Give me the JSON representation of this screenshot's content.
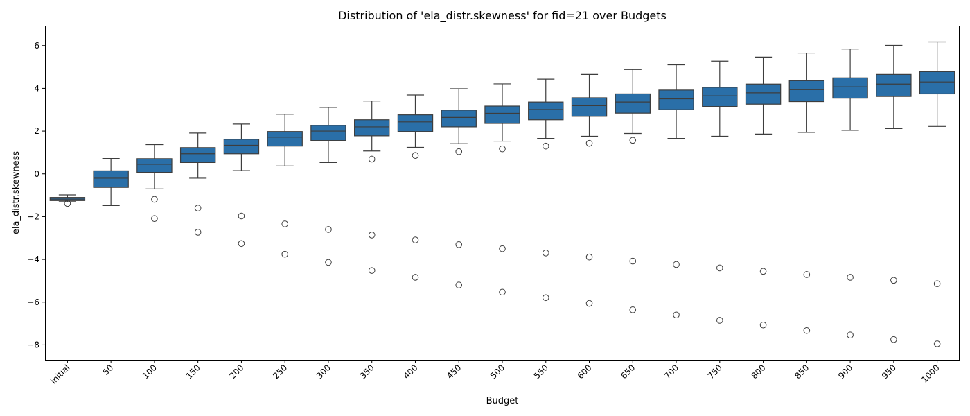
{
  "chart_data": {
    "type": "box",
    "title": "Distribution of 'ela_distr.skewness' for fid=21 over Budgets",
    "xlabel": "Budget",
    "ylabel": "ela_distr.skewness",
    "ylim": [
      -8.7,
      6.9
    ],
    "yticks": [
      -8,
      -6,
      -4,
      -2,
      0,
      2,
      4,
      6
    ],
    "grid": false,
    "legend": "none",
    "box_color": "#2a6fa8",
    "categories": [
      "initial",
      "50",
      "100",
      "150",
      "200",
      "250",
      "300",
      "350",
      "400",
      "450",
      "500",
      "550",
      "600",
      "650",
      "700",
      "750",
      "800",
      "850",
      "900",
      "950",
      "1000"
    ],
    "boxes": [
      {
        "whislo": -1.3,
        "q1": -1.25,
        "med": -1.18,
        "q3": -1.1,
        "whishi": -0.98,
        "fliers": [
          -1.38
        ]
      },
      {
        "whislo": -1.48,
        "q1": -0.63,
        "med": -0.2,
        "q3": 0.14,
        "whishi": 0.72,
        "fliers": []
      },
      {
        "whislo": -0.7,
        "q1": 0.07,
        "med": 0.45,
        "q3": 0.71,
        "whishi": 1.37,
        "fliers": [
          -1.19,
          -2.09
        ]
      },
      {
        "whislo": -0.2,
        "q1": 0.53,
        "med": 0.94,
        "q3": 1.23,
        "whishi": 1.91,
        "fliers": [
          -1.6,
          -2.73
        ]
      },
      {
        "whislo": 0.15,
        "q1": 0.94,
        "med": 1.34,
        "q3": 1.62,
        "whishi": 2.33,
        "fliers": [
          -1.97,
          -3.26
        ]
      },
      {
        "whislo": 0.37,
        "q1": 1.3,
        "med": 1.72,
        "q3": 1.98,
        "whishi": 2.79,
        "fliers": [
          -2.34,
          -3.76
        ]
      },
      {
        "whislo": 0.53,
        "q1": 1.56,
        "med": 2.0,
        "q3": 2.27,
        "whishi": 3.11,
        "fliers": [
          -2.6,
          -4.14
        ]
      },
      {
        "whislo": 1.07,
        "q1": 1.78,
        "med": 2.2,
        "q3": 2.53,
        "whishi": 3.41,
        "fliers": [
          0.69,
          -2.86,
          -4.52
        ]
      },
      {
        "whislo": 1.24,
        "q1": 1.98,
        "med": 2.43,
        "q3": 2.76,
        "whishi": 3.69,
        "fliers": [
          0.86,
          -3.09,
          -4.84
        ]
      },
      {
        "whislo": 1.41,
        "q1": 2.2,
        "med": 2.64,
        "q3": 2.98,
        "whishi": 3.98,
        "fliers": [
          1.04,
          -3.31,
          -5.2
        ]
      },
      {
        "whislo": 1.53,
        "q1": 2.36,
        "med": 2.83,
        "q3": 3.17,
        "whishi": 4.21,
        "fliers": [
          1.17,
          -3.5,
          -5.53
        ]
      },
      {
        "whislo": 1.66,
        "q1": 2.53,
        "med": 3.01,
        "q3": 3.36,
        "whishi": 4.43,
        "fliers": [
          1.3,
          -3.7,
          -5.79
        ]
      },
      {
        "whislo": 1.76,
        "q1": 2.69,
        "med": 3.19,
        "q3": 3.56,
        "whishi": 4.65,
        "fliers": [
          1.43,
          -3.89,
          -6.06
        ]
      },
      {
        "whislo": 1.89,
        "q1": 2.84,
        "med": 3.36,
        "q3": 3.74,
        "whishi": 4.88,
        "fliers": [
          1.57,
          -4.08,
          -6.36
        ]
      },
      {
        "whislo": 1.66,
        "q1": 3.0,
        "med": 3.51,
        "q3": 3.92,
        "whishi": 5.1,
        "fliers": [
          -4.24,
          -6.6
        ]
      },
      {
        "whislo": 1.76,
        "q1": 3.15,
        "med": 3.65,
        "q3": 4.05,
        "whishi": 5.27,
        "fliers": [
          -4.4,
          -6.85
        ]
      },
      {
        "whislo": 1.86,
        "q1": 3.26,
        "med": 3.79,
        "q3": 4.2,
        "whishi": 5.46,
        "fliers": [
          -4.56,
          -7.07
        ]
      },
      {
        "whislo": 1.94,
        "q1": 3.38,
        "med": 3.94,
        "q3": 4.36,
        "whishi": 5.65,
        "fliers": [
          -4.71,
          -7.33
        ]
      },
      {
        "whislo": 2.04,
        "q1": 3.54,
        "med": 4.07,
        "q3": 4.49,
        "whishi": 5.84,
        "fliers": [
          -4.84,
          -7.54
        ]
      },
      {
        "whislo": 2.12,
        "q1": 3.62,
        "med": 4.2,
        "q3": 4.65,
        "whishi": 6.01,
        "fliers": [
          -4.98,
          -7.75
        ]
      },
      {
        "whislo": 2.22,
        "q1": 3.74,
        "med": 4.3,
        "q3": 4.78,
        "whishi": 6.17,
        "fliers": [
          -5.14,
          -7.95
        ]
      }
    ]
  }
}
